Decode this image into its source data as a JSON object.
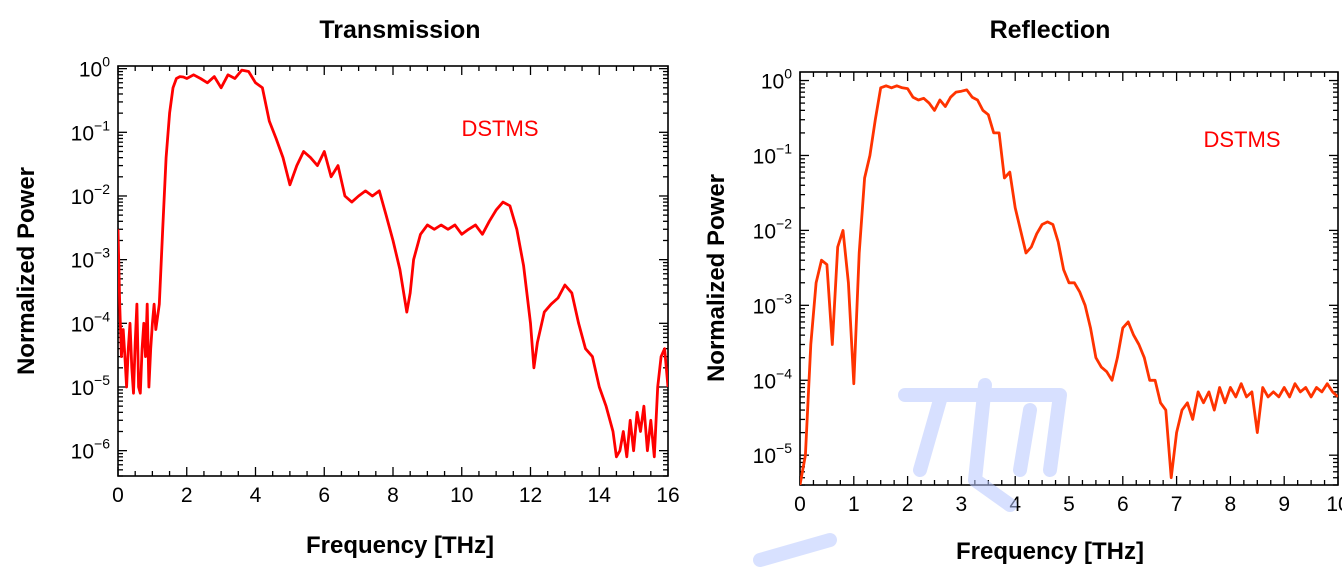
{
  "colors": {
    "transmission_line": "#ff0000",
    "reflection_line": "#ff3300",
    "annotation": "#ff0000",
    "watermark": "#b8c8ff"
  },
  "chart_data": [
    {
      "type": "line",
      "title": "Transmission",
      "xlabel": "Frequency [THz]",
      "ylabel": "Normalized Power",
      "xlim": [
        0,
        16
      ],
      "ylim": [
        4e-07,
        1.1
      ],
      "yscale": "log",
      "grid": false,
      "xticks": [
        0,
        2,
        4,
        6,
        8,
        10,
        12,
        14,
        16
      ],
      "yticks": [
        {
          "value": 1e-06,
          "base": "10",
          "exp": "−6"
        },
        {
          "value": 1e-05,
          "base": "10",
          "exp": "−5"
        },
        {
          "value": 0.0001,
          "base": "10",
          "exp": "−4"
        },
        {
          "value": 0.001,
          "base": "10",
          "exp": "−3"
        },
        {
          "value": 0.01,
          "base": "10",
          "exp": "−2"
        },
        {
          "value": 0.1,
          "base": "10",
          "exp": "−1"
        },
        {
          "value": 1,
          "base": "10",
          "exp": "0"
        }
      ],
      "annotation": "DSTMS",
      "series": [
        {
          "x": [
            0.0,
            0.05,
            0.1,
            0.15,
            0.2,
            0.25,
            0.3,
            0.35,
            0.4,
            0.45,
            0.5,
            0.55,
            0.6,
            0.65,
            0.7,
            0.75,
            0.8,
            0.85,
            0.9,
            0.95,
            1.0,
            1.05,
            1.1,
            1.2,
            1.3,
            1.4,
            1.5,
            1.6,
            1.7,
            1.8,
            1.9,
            2.0,
            2.2,
            2.4,
            2.6,
            2.8,
            3.0,
            3.2,
            3.4,
            3.6,
            3.8,
            4.0,
            4.2,
            4.4,
            4.6,
            4.8,
            5.0,
            5.2,
            5.4,
            5.6,
            5.8,
            6.0,
            6.2,
            6.4,
            6.6,
            6.8,
            7.0,
            7.2,
            7.4,
            7.6,
            7.8,
            8.0,
            8.2,
            8.4,
            8.5,
            8.6,
            8.8,
            9.0,
            9.2,
            9.4,
            9.6,
            9.8,
            10.0,
            10.2,
            10.4,
            10.6,
            10.8,
            11.0,
            11.2,
            11.4,
            11.6,
            11.8,
            12.0,
            12.1,
            12.2,
            12.4,
            12.6,
            12.8,
            13.0,
            13.2,
            13.4,
            13.6,
            13.8,
            14.0,
            14.2,
            14.4,
            14.5,
            14.6,
            14.7,
            14.8,
            14.9,
            15.0,
            15.1,
            15.2,
            15.3,
            15.4,
            15.5,
            15.6,
            15.7,
            15.8,
            15.9,
            16.0
          ],
          "y": [
            0.003,
            0.0002,
            3e-05,
            8e-05,
            3e-05,
            1e-05,
            4e-05,
            0.0001,
            2e-05,
            8e-06,
            5e-05,
            0.0002,
            1e-05,
            8e-06,
            4e-05,
            0.0001,
            3e-05,
            0.0002,
            1e-05,
            4e-05,
            0.0001,
            0.0002,
            8e-05,
            0.0002,
            0.003,
            0.04,
            0.2,
            0.5,
            0.7,
            0.75,
            0.74,
            0.7,
            0.8,
            0.7,
            0.6,
            0.75,
            0.5,
            0.8,
            0.7,
            0.95,
            0.9,
            0.6,
            0.5,
            0.15,
            0.08,
            0.04,
            0.015,
            0.03,
            0.05,
            0.04,
            0.03,
            0.05,
            0.02,
            0.03,
            0.01,
            0.008,
            0.01,
            0.012,
            0.01,
            0.012,
            0.005,
            0.002,
            0.0007,
            0.00015,
            0.0003,
            0.001,
            0.0025,
            0.0035,
            0.003,
            0.0035,
            0.003,
            0.0035,
            0.0025,
            0.003,
            0.0035,
            0.0025,
            0.004,
            0.006,
            0.008,
            0.007,
            0.003,
            0.0008,
            0.0001,
            2e-05,
            5e-05,
            0.00015,
            0.0002,
            0.00025,
            0.0004,
            0.0003,
            0.0001,
            4e-05,
            3e-05,
            1e-05,
            5e-06,
            2e-06,
            8e-07,
            1e-06,
            2e-06,
            8e-07,
            3e-06,
            1e-06,
            4e-06,
            2e-06,
            5e-06,
            1e-06,
            3e-06,
            8e-07,
            1e-05,
            3e-05,
            4e-05,
            1e-05
          ]
        }
      ]
    },
    {
      "type": "line",
      "title": "Reflection",
      "xlabel": "Frequency [THz]",
      "ylabel": "Normalized Power",
      "xlim": [
        0,
        10
      ],
      "ylim": [
        4e-06,
        1.3
      ],
      "yscale": "log",
      "grid": false,
      "xticks": [
        0,
        1,
        2,
        3,
        4,
        5,
        6,
        7,
        8,
        9,
        10
      ],
      "yticks": [
        {
          "value": 1e-05,
          "base": "10",
          "exp": "−5"
        },
        {
          "value": 0.0001,
          "base": "10",
          "exp": "−4"
        },
        {
          "value": 0.001,
          "base": "10",
          "exp": "−3"
        },
        {
          "value": 0.01,
          "base": "10",
          "exp": "−2"
        },
        {
          "value": 0.1,
          "base": "10",
          "exp": "−1"
        },
        {
          "value": 1,
          "base": "10",
          "exp": "0"
        }
      ],
      "annotation": "DSTMS",
      "series": [
        {
          "x": [
            0.0,
            0.1,
            0.2,
            0.3,
            0.4,
            0.5,
            0.6,
            0.7,
            0.8,
            0.9,
            1.0,
            1.1,
            1.2,
            1.3,
            1.4,
            1.5,
            1.6,
            1.7,
            1.8,
            1.9,
            2.0,
            2.1,
            2.2,
            2.3,
            2.4,
            2.5,
            2.6,
            2.7,
            2.8,
            2.9,
            3.0,
            3.1,
            3.2,
            3.3,
            3.4,
            3.5,
            3.6,
            3.7,
            3.8,
            3.9,
            4.0,
            4.1,
            4.2,
            4.3,
            4.4,
            4.5,
            4.6,
            4.7,
            4.8,
            4.9,
            5.0,
            5.1,
            5.2,
            5.3,
            5.4,
            5.5,
            5.6,
            5.7,
            5.8,
            5.9,
            6.0,
            6.1,
            6.2,
            6.3,
            6.4,
            6.5,
            6.6,
            6.7,
            6.8,
            6.9,
            7.0,
            7.1,
            7.2,
            7.3,
            7.4,
            7.5,
            7.6,
            7.7,
            7.8,
            7.9,
            8.0,
            8.1,
            8.2,
            8.3,
            8.4,
            8.5,
            8.6,
            8.7,
            8.8,
            8.9,
            9.0,
            9.1,
            9.2,
            9.3,
            9.4,
            9.5,
            9.6,
            9.7,
            9.8,
            9.9,
            10.0
          ],
          "y": [
            4e-06,
            1e-05,
            0.0003,
            0.002,
            0.004,
            0.0035,
            0.0003,
            0.006,
            0.01,
            0.002,
            9e-05,
            0.005,
            0.05,
            0.1,
            0.3,
            0.8,
            0.85,
            0.8,
            0.85,
            0.8,
            0.78,
            0.6,
            0.55,
            0.58,
            0.5,
            0.4,
            0.55,
            0.45,
            0.6,
            0.7,
            0.72,
            0.75,
            0.6,
            0.55,
            0.4,
            0.35,
            0.2,
            0.2,
            0.05,
            0.06,
            0.02,
            0.01,
            0.005,
            0.006,
            0.009,
            0.012,
            0.013,
            0.012,
            0.007,
            0.003,
            0.002,
            0.002,
            0.0015,
            0.001,
            0.0005,
            0.0002,
            0.00015,
            0.00013,
            0.0001,
            0.0002,
            0.0005,
            0.0006,
            0.0004,
            0.0003,
            0.0002,
            0.0001,
            0.0001,
            5e-05,
            4e-05,
            5e-06,
            2e-05,
            4e-05,
            5e-05,
            3e-05,
            7e-05,
            5e-05,
            7e-05,
            4e-05,
            8e-05,
            5e-05,
            8e-05,
            6e-05,
            9e-05,
            6e-05,
            7e-05,
            2e-05,
            8e-05,
            6e-05,
            7e-05,
            6e-05,
            8e-05,
            6e-05,
            9e-05,
            7e-05,
            8e-05,
            6e-05,
            8e-05,
            7e-05,
            9e-05,
            7e-05,
            6e-05
          ]
        }
      ]
    }
  ]
}
